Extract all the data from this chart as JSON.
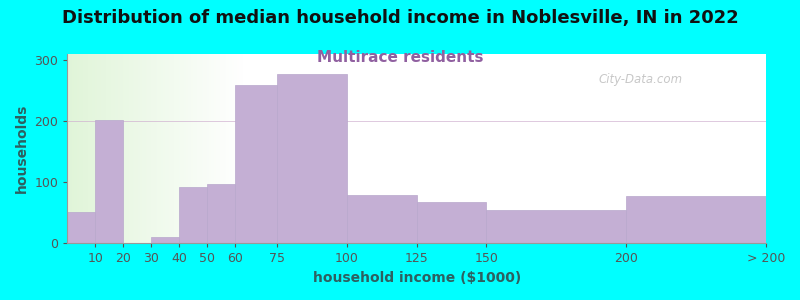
{
  "title": "Distribution of median household income in Noblesville, IN in 2022",
  "subtitle": "Multirace residents",
  "xlabel": "household income ($1000)",
  "ylabel": "households",
  "background_color": "#00FFFF",
  "bar_color": "#c4afd4",
  "bar_edge_color": "#b8a8cc",
  "watermark": "City-Data.com",
  "bin_edges": [
    0,
    10,
    20,
    30,
    40,
    50,
    60,
    75,
    100,
    125,
    150,
    200,
    250
  ],
  "bin_labels": [
    "10",
    "20",
    "30",
    "40",
    "50",
    "60",
    "75",
    "100",
    "125",
    "150",
    "200",
    "> 200"
  ],
  "values": [
    52,
    202,
    0,
    10,
    93,
    97,
    260,
    278,
    80,
    67,
    54,
    77
  ],
  "yticks": [
    0,
    100,
    200,
    300
  ],
  "ylim": [
    0,
    310
  ],
  "title_fontsize": 13,
  "subtitle_fontsize": 11,
  "subtitle_color": "#9060a0",
  "axis_label_fontsize": 10,
  "tick_fontsize": 9,
  "tick_label_color": "#555555",
  "axis_label_color": "#2d6060",
  "title_color": "#111111"
}
